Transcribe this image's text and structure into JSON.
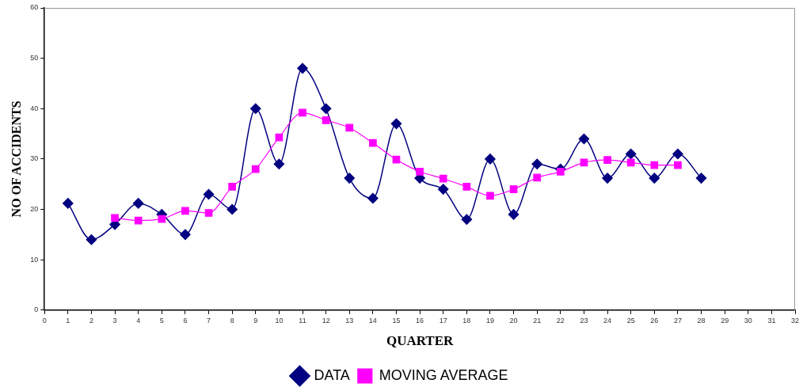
{
  "chart_data": {
    "type": "line",
    "xlabel": "QUARTER",
    "ylabel": "NO OF ACCIDENTS",
    "xlim": [
      0,
      32
    ],
    "xticks": [
      0,
      1,
      2,
      3,
      4,
      5,
      6,
      7,
      8,
      9,
      10,
      11,
      12,
      13,
      14,
      15,
      16,
      17,
      18,
      19,
      20,
      21,
      22,
      23,
      24,
      25,
      26,
      27,
      28,
      29,
      30,
      31,
      32
    ],
    "ylim": [
      0,
      60
    ],
    "yticks": [
      0,
      10,
      20,
      30,
      40,
      50,
      60
    ],
    "grid": false,
    "legend": "bottom",
    "series": [
      {
        "name": "DATA",
        "color": "#000080",
        "marker": "diamond",
        "x": [
          1,
          2,
          3,
          4,
          5,
          6,
          7,
          8,
          9,
          10,
          11,
          12,
          13,
          14,
          15,
          16,
          17,
          18,
          19,
          20,
          21,
          22,
          23,
          24,
          25,
          26,
          27,
          28
        ],
        "values": [
          21.2,
          14,
          17,
          21.2,
          19,
          15,
          23,
          20,
          40,
          29,
          48,
          40,
          26.2,
          22.2,
          37,
          26.2,
          24,
          18,
          30,
          19,
          29,
          28,
          34,
          26.2,
          31,
          26.2,
          31,
          26.2
        ]
      },
      {
        "name": "MOVING AVERAGE",
        "color": "#ff00ff",
        "marker": "square",
        "x": [
          3,
          4,
          5,
          6,
          7,
          8,
          9,
          10,
          11,
          12,
          13,
          14,
          15,
          16,
          17,
          18,
          19,
          20,
          21,
          22,
          23,
          24,
          25,
          26,
          27
        ],
        "values": [
          18.3,
          17.8,
          18.1,
          19.7,
          19.3,
          24.5,
          28,
          34.3,
          39.2,
          37.7,
          36.2,
          33.2,
          29.9,
          27.5,
          26.1,
          24.5,
          22.7,
          24,
          26.3,
          27.5,
          29.3,
          29.8,
          29.3,
          28.8,
          28.8
        ]
      }
    ]
  }
}
